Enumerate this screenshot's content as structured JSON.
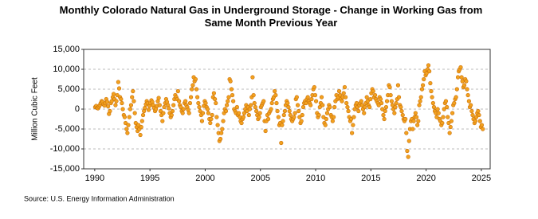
{
  "chart_data": {
    "type": "scatter",
    "title": "Monthly Colorado Natural Gas in Underground Storage - Change in Working Gas from Same Month Previous Year",
    "y_label": "Million Cubic Feet",
    "source": "Source: U.S. Energy Information Administration",
    "color": "#f2a11f",
    "grid": true,
    "xlim": [
      1989,
      2025.8
    ],
    "ylim": [
      -15000,
      15000
    ],
    "xticks": [
      1990,
      1995,
      2000,
      2005,
      2010,
      2015,
      2020,
      2025
    ],
    "yticks": [
      {
        "value": -15000,
        "label": "-15,000"
      },
      {
        "value": -10000,
        "label": "-10,000"
      },
      {
        "value": -5000,
        "label": "-5,000"
      },
      0,
      {
        "value": 5000,
        "label": "5,000"
      },
      {
        "value": 10000,
        "label": "10,000"
      },
      {
        "value": 15000,
        "label": "15,000"
      }
    ],
    "x": [
      1990.04,
      1990.13,
      1990.21,
      1990.29,
      1990.38,
      1990.46,
      1990.54,
      1990.63,
      1990.71,
      1990.79,
      1990.88,
      1990.96,
      1991.04,
      1991.13,
      1991.21,
      1991.29,
      1991.38,
      1991.46,
      1991.54,
      1991.63,
      1991.71,
      1991.79,
      1991.88,
      1991.96,
      1992.04,
      1992.13,
      1992.21,
      1992.29,
      1992.38,
      1992.46,
      1992.54,
      1992.63,
      1992.71,
      1992.79,
      1992.88,
      1992.96,
      1993.04,
      1993.13,
      1993.21,
      1993.29,
      1993.38,
      1993.46,
      1993.54,
      1993.63,
      1993.71,
      1993.79,
      1993.88,
      1993.96,
      1994.04,
      1994.13,
      1994.21,
      1994.29,
      1994.38,
      1994.46,
      1994.54,
      1994.63,
      1994.71,
      1994.79,
      1994.88,
      1994.96,
      1995.04,
      1995.13,
      1995.21,
      1995.29,
      1995.38,
      1995.46,
      1995.54,
      1995.63,
      1995.71,
      1995.79,
      1995.88,
      1995.96,
      1996.04,
      1996.13,
      1996.21,
      1996.29,
      1996.38,
      1996.46,
      1996.54,
      1996.63,
      1996.71,
      1996.79,
      1996.88,
      1996.96,
      1997.04,
      1997.13,
      1997.21,
      1997.29,
      1997.38,
      1997.46,
      1997.54,
      1997.63,
      1997.71,
      1997.79,
      1997.88,
      1997.96,
      1998.04,
      1998.13,
      1998.21,
      1998.29,
      1998.38,
      1998.46,
      1998.54,
      1998.63,
      1998.71,
      1998.79,
      1998.88,
      1998.96,
      1999.04,
      1999.13,
      1999.21,
      1999.29,
      1999.38,
      1999.46,
      1999.54,
      1999.63,
      1999.71,
      1999.79,
      1999.88,
      1999.96,
      2000.04,
      2000.13,
      2000.21,
      2000.29,
      2000.38,
      2000.46,
      2000.54,
      2000.63,
      2000.71,
      2000.79,
      2000.88,
      2000.96,
      2001.04,
      2001.13,
      2001.21,
      2001.29,
      2001.38,
      2001.46,
      2001.54,
      2001.63,
      2001.71,
      2001.79,
      2001.88,
      2001.96,
      2002.04,
      2002.13,
      2002.21,
      2002.29,
      2002.38,
      2002.46,
      2002.54,
      2002.63,
      2002.71,
      2002.79,
      2002.88,
      2002.96,
      2003.04,
      2003.13,
      2003.21,
      2003.29,
      2003.38,
      2003.46,
      2003.54,
      2003.63,
      2003.71,
      2003.79,
      2003.88,
      2003.96,
      2004.04,
      2004.13,
      2004.21,
      2004.29,
      2004.38,
      2004.46,
      2004.54,
      2004.63,
      2004.71,
      2004.79,
      2004.88,
      2004.96,
      2005.04,
      2005.13,
      2005.21,
      2005.29,
      2005.38,
      2005.46,
      2005.54,
      2005.63,
      2005.71,
      2005.79,
      2005.88,
      2005.96,
      2006.04,
      2006.13,
      2006.21,
      2006.29,
      2006.38,
      2006.46,
      2006.54,
      2006.63,
      2006.71,
      2006.79,
      2006.88,
      2006.96,
      2007.04,
      2007.13,
      2007.21,
      2007.29,
      2007.38,
      2007.46,
      2007.54,
      2007.63,
      2007.71,
      2007.79,
      2007.88,
      2007.96,
      2008.04,
      2008.13,
      2008.21,
      2008.29,
      2008.38,
      2008.46,
      2008.54,
      2008.63,
      2008.71,
      2008.79,
      2008.88,
      2008.96,
      2009.04,
      2009.13,
      2009.21,
      2009.29,
      2009.38,
      2009.46,
      2009.54,
      2009.63,
      2009.71,
      2009.79,
      2009.88,
      2009.96,
      2010.04,
      2010.13,
      2010.21,
      2010.29,
      2010.38,
      2010.46,
      2010.54,
      2010.63,
      2010.71,
      2010.79,
      2010.88,
      2010.96,
      2011.04,
      2011.13,
      2011.21,
      2011.29,
      2011.38,
      2011.46,
      2011.54,
      2011.63,
      2011.71,
      2011.79,
      2011.88,
      2011.96,
      2012.04,
      2012.13,
      2012.21,
      2012.29,
      2012.38,
      2012.46,
      2012.54,
      2012.63,
      2012.71,
      2012.79,
      2012.88,
      2012.96,
      2013.04,
      2013.13,
      2013.21,
      2013.29,
      2013.38,
      2013.46,
      2013.54,
      2013.63,
      2013.71,
      2013.79,
      2013.88,
      2013.96,
      2014.04,
      2014.13,
      2014.21,
      2014.29,
      2014.38,
      2014.46,
      2014.54,
      2014.63,
      2014.71,
      2014.79,
      2014.88,
      2014.96,
      2015.04,
      2015.13,
      2015.21,
      2015.29,
      2015.38,
      2015.46,
      2015.54,
      2015.63,
      2015.71,
      2015.79,
      2015.88,
      2015.96,
      2016.04,
      2016.13,
      2016.21,
      2016.29,
      2016.38,
      2016.46,
      2016.54,
      2016.63,
      2016.71,
      2016.79,
      2016.88,
      2016.96,
      2017.04,
      2017.13,
      2017.21,
      2017.29,
      2017.38,
      2017.46,
      2017.54,
      2017.63,
      2017.71,
      2017.79,
      2017.88,
      2017.96,
      2018.04,
      2018.13,
      2018.21,
      2018.29,
      2018.38,
      2018.46,
      2018.54,
      2018.63,
      2018.71,
      2018.79,
      2018.88,
      2018.96,
      2019.04,
      2019.13,
      2019.21,
      2019.29,
      2019.38,
      2019.46,
      2019.54,
      2019.63,
      2019.71,
      2019.79,
      2019.88,
      2019.96,
      2020.04,
      2020.13,
      2020.21,
      2020.29,
      2020.38,
      2020.46,
      2020.54,
      2020.63,
      2020.71,
      2020.79,
      2020.88,
      2020.96,
      2021.04,
      2021.13,
      2021.21,
      2021.29,
      2021.38,
      2021.46,
      2021.54,
      2021.63,
      2021.71,
      2021.79,
      2021.88,
      2021.96,
      2022.04,
      2022.13,
      2022.21,
      2022.29,
      2022.38,
      2022.46,
      2022.54,
      2022.63,
      2022.71,
      2022.79,
      2022.88,
      2022.96,
      2023.04,
      2023.13,
      2023.21,
      2023.29,
      2023.38,
      2023.46,
      2023.54,
      2023.63,
      2023.71,
      2023.79,
      2023.88,
      2023.96,
      2024.04,
      2024.13,
      2024.21,
      2024.29,
      2024.38,
      2024.46,
      2024.54,
      2024.63,
      2024.71,
      2024.79,
      2024.88,
      2024.96,
      2025.04,
      2025.13
    ],
    "values": [
      500,
      800,
      300,
      200,
      600,
      1000,
      1500,
      2000,
      1800,
      1200,
      900,
      1500,
      2500,
      1800,
      700,
      -1200,
      -500,
      1500,
      2000,
      3000,
      3800,
      2500,
      1000,
      2000,
      3500,
      6800,
      5200,
      3000,
      2500,
      1500,
      0,
      -1500,
      -2000,
      -3500,
      -5000,
      -6000,
      -4000,
      -2000,
      0,
      1000,
      3000,
      4500,
      2000,
      -1000,
      -3500,
      -4500,
      -5500,
      -4000,
      -5000,
      -6500,
      -4500,
      -3000,
      -1500,
      -500,
      300,
      1200,
      2000,
      1500,
      -200,
      800,
      1500,
      2200,
      1800,
      1000,
      300,
      -500,
      0,
      800,
      2000,
      2800,
      1000,
      -500,
      -1500,
      -3000,
      -1000,
      500,
      1500,
      2500,
      1800,
      1000,
      200,
      -1000,
      -2000,
      -1500,
      -500,
      1000,
      2500,
      3500,
      3000,
      2500,
      4500,
      2000,
      1000,
      500,
      -500,
      -1000,
      0,
      1500,
      2000,
      1000,
      500,
      -200,
      -1000,
      1500,
      3000,
      5000,
      6000,
      8000,
      7000,
      7500,
      5000,
      3000,
      1500,
      500,
      -500,
      -1500,
      -3000,
      -1000,
      800,
      2000,
      1500,
      500,
      0,
      -1000,
      -2500,
      -3500,
      -2500,
      -1500,
      3000,
      4000,
      2500,
      1500,
      -2000,
      -4000,
      -6000,
      -8000,
      -7500,
      -6000,
      -5000,
      -3000,
      -1000,
      0,
      -500,
      1000,
      2000,
      3000,
      7500,
      7000,
      5000,
      3500,
      2000,
      0,
      -500,
      -1000,
      500,
      -1500,
      -1000,
      -2000,
      -3000,
      -3500,
      -2500,
      -2000,
      -1000,
      0,
      1000,
      -500,
      500,
      -1500,
      0,
      1000,
      3000,
      8000,
      3500,
      1500,
      500,
      -500,
      -1500,
      -2500,
      -2000,
      -1000,
      500,
      1000,
      1500,
      2000,
      -3000,
      -5500,
      -3000,
      -1500,
      -2500,
      -1000,
      -500,
      0,
      1500,
      2500,
      3000,
      4500,
      3500,
      1500,
      -500,
      -2000,
      -4000,
      -3500,
      -8500,
      -4000,
      -3000,
      -1500,
      -500,
      1000,
      2000,
      1500,
      500,
      -500,
      -1500,
      -2500,
      -3000,
      -2500,
      -2000,
      -1000,
      2500,
      3000,
      1000,
      -500,
      -2000,
      -3500,
      -3000,
      -1500,
      500,
      1500,
      2000,
      1500,
      2500,
      3000,
      2000,
      1500,
      1000,
      2500,
      3500,
      5000,
      5500,
      3500,
      2000,
      -1000,
      -2000,
      -1500,
      500,
      1500,
      3000,
      1000,
      -2000,
      -3500,
      -4000,
      -2500,
      -1000,
      0,
      1000,
      500,
      -1500,
      -2000,
      -3000,
      -2000,
      500,
      2000,
      3500,
      2500,
      3000,
      4500,
      3500,
      2500,
      2000,
      3000,
      4000,
      5500,
      3000,
      1500,
      500,
      -500,
      -2000,
      -3000,
      -2500,
      -6000,
      -4000,
      -2000,
      0,
      1000,
      1500,
      500,
      -500,
      1000,
      1500,
      2000,
      1000,
      0,
      -1000,
      500,
      1500,
      3000,
      2000,
      1000,
      500,
      2500,
      4000,
      5000,
      4500,
      3000,
      3500,
      2500,
      2000,
      1500,
      1000,
      3000,
      2500,
      1500,
      0,
      -1500,
      -2500,
      -500,
      500,
      2000,
      3500,
      6000,
      5500,
      3500,
      2000,
      1000,
      0,
      -1000,
      500,
      1500,
      2500,
      6000,
      3000,
      1000,
      500,
      -500,
      -1500,
      -2500,
      -3000,
      -2500,
      -6000,
      -10500,
      -12000,
      -8000,
      -5000,
      -3000,
      -2500,
      -5000,
      -3000,
      -2000,
      -1000,
      -2000,
      -4000,
      -3000,
      1000,
      2000,
      3000,
      5000,
      6000,
      7500,
      9500,
      8500,
      9000,
      10000,
      11000,
      9500,
      6500,
      4500,
      3000,
      1500,
      500,
      -500,
      -1000,
      -2000,
      0,
      -1000,
      -2500,
      -3000,
      -4000,
      -3500,
      -2000,
      0,
      1500,
      2000,
      500,
      -2000,
      -3500,
      -6000,
      -4500,
      -3000,
      -1000,
      1000,
      1500,
      2500,
      3000,
      5000,
      8000,
      9500,
      10000,
      10500,
      8000,
      7000,
      5500,
      6000,
      7500,
      7000,
      5000,
      3500,
      2000,
      500,
      1000,
      -500,
      -1500,
      -2500,
      -3500,
      -3000,
      -2000,
      -1000,
      -500,
      -1500,
      -3000,
      -4500,
      -4000,
      -5000
    ]
  }
}
